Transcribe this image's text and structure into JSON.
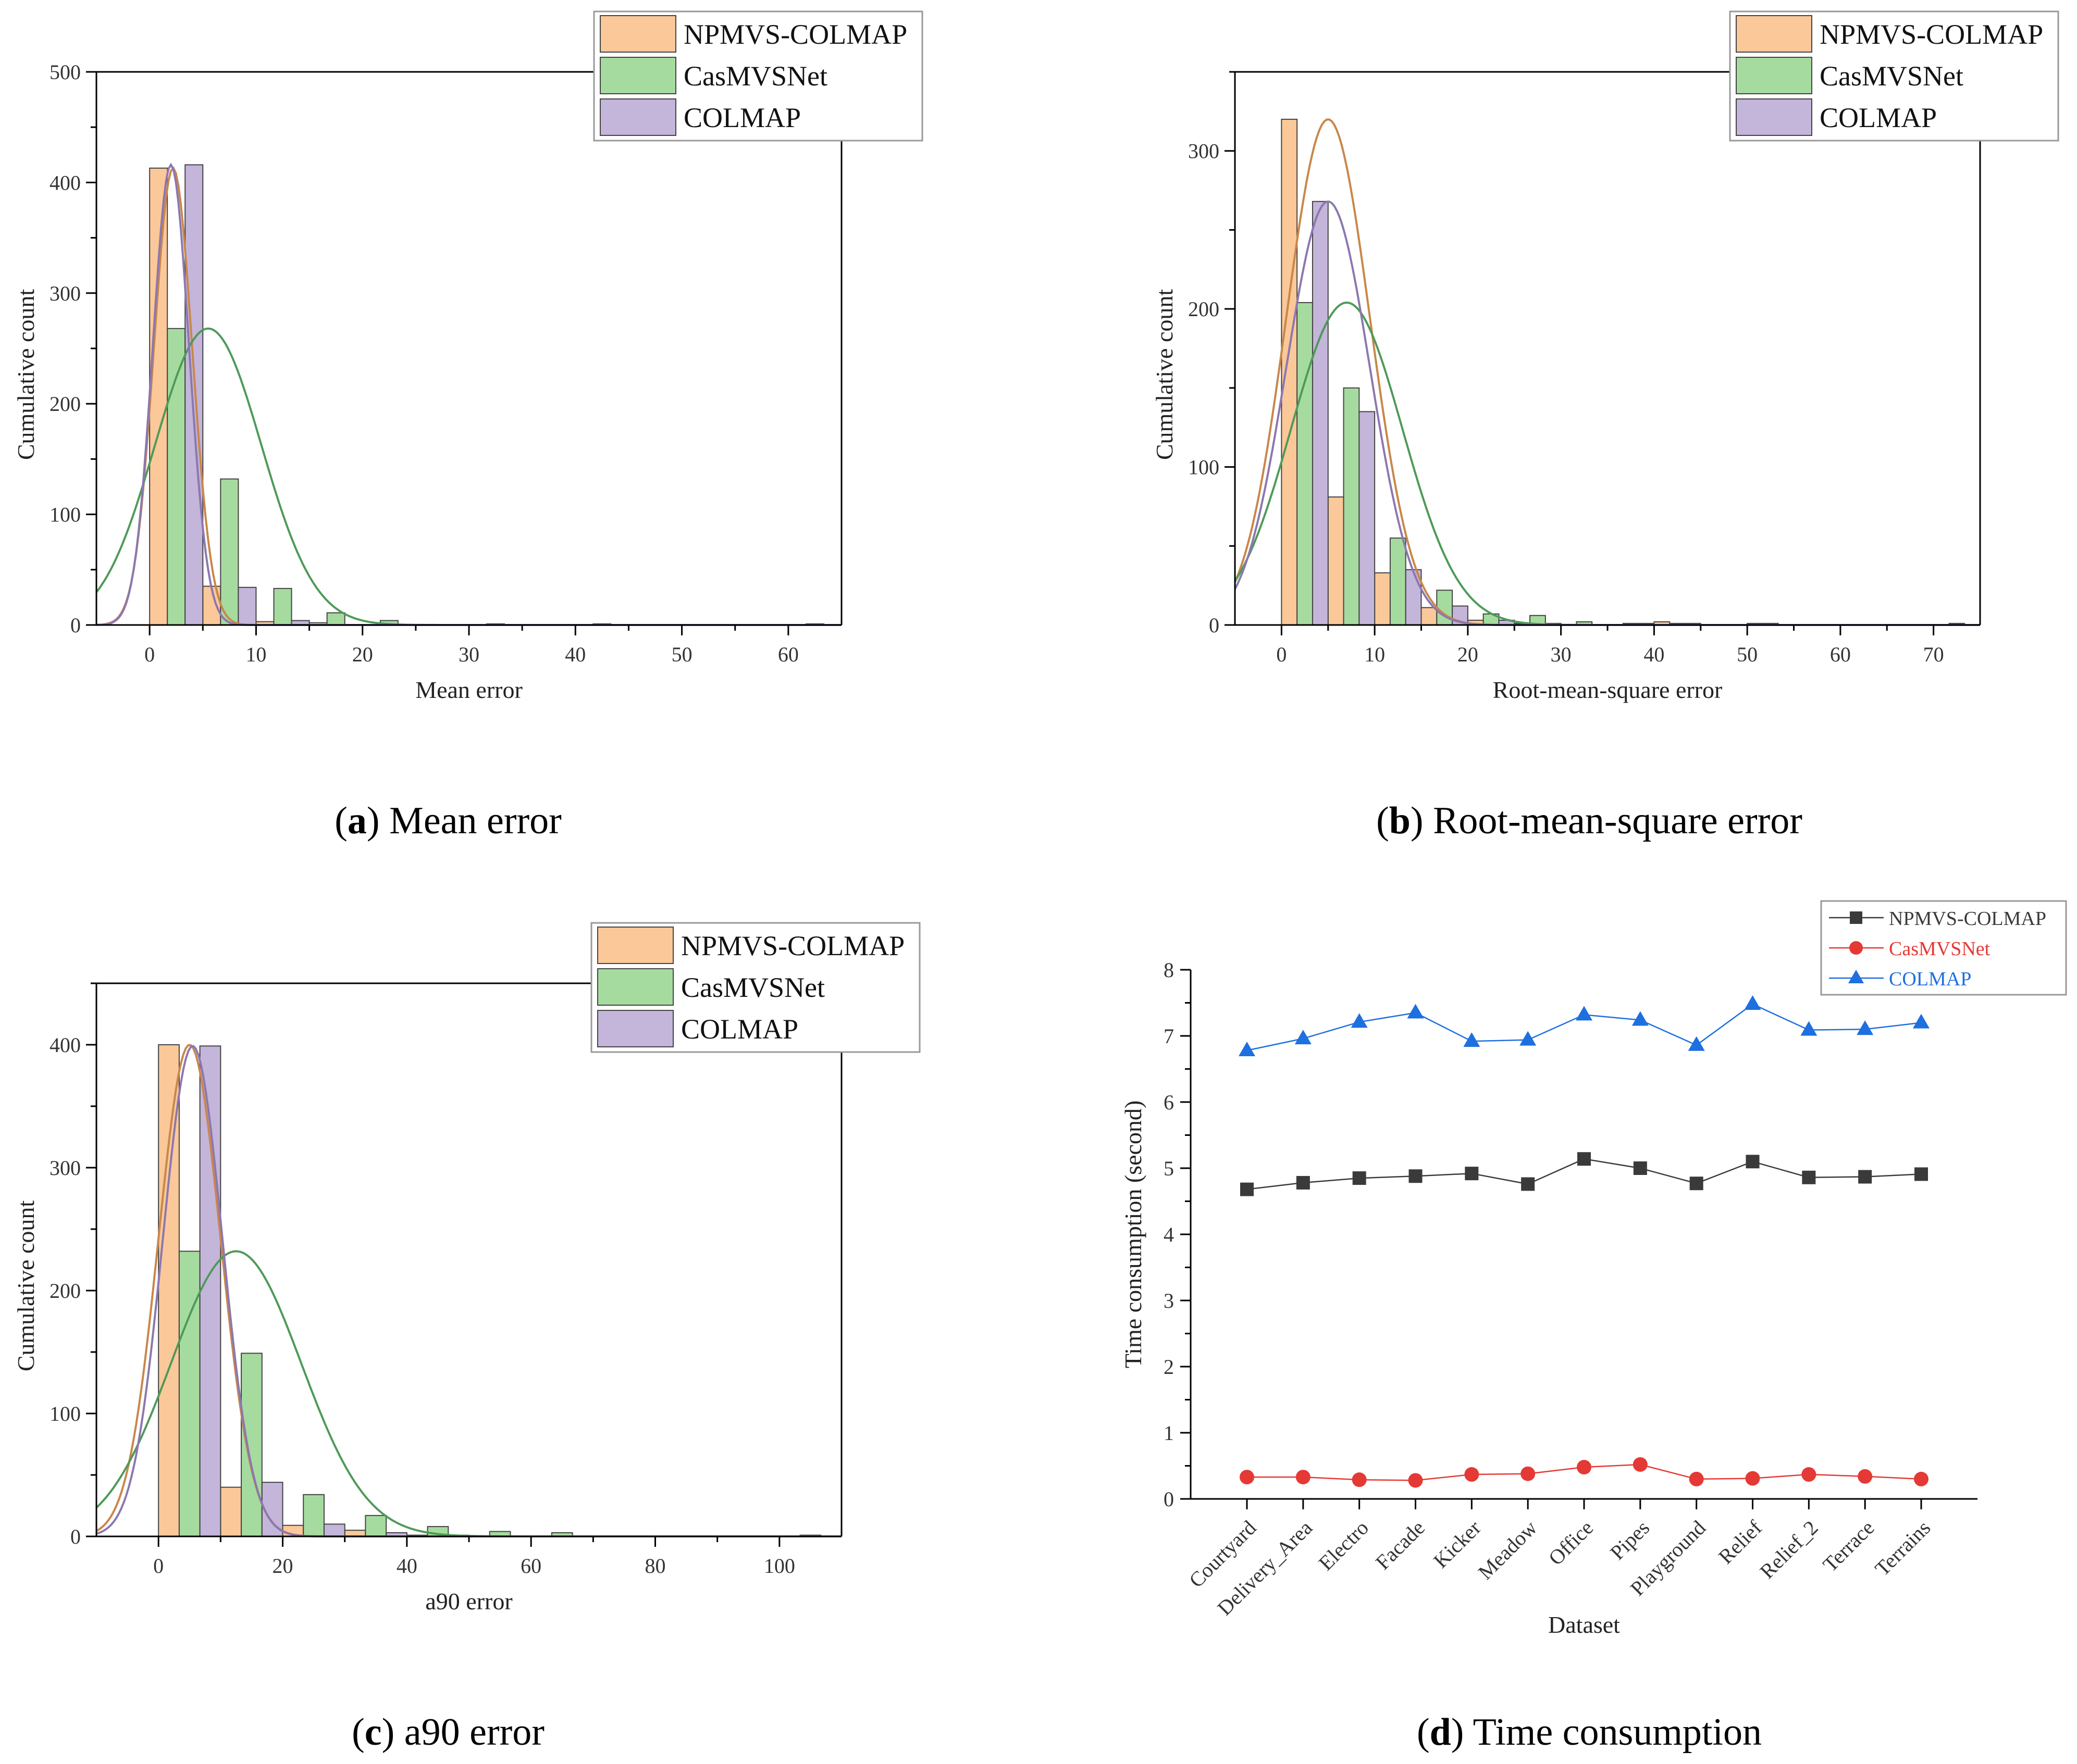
{
  "colors": {
    "npmvs_fill": "#FBC899",
    "npmvs_curve": "#C8874A",
    "casmvs_fill": "#A6DBA0",
    "casmvs_curve": "#4E9A58",
    "colmap_fill": "#C4B5DA",
    "colmap_curve": "#8C77B0",
    "bar_stroke": "#444444",
    "axis": "#000000",
    "line_npmvs": "#3a3a3a",
    "line_casmvs": "#E53935",
    "line_colmap": "#1E6FE0"
  },
  "chart_data": [
    {
      "id": "a",
      "type": "bar",
      "caption_letter": "a",
      "caption_text": "Mean error",
      "xlabel": "Mean error",
      "ylabel": "Cumulative count",
      "xlim": [
        -5,
        65
      ],
      "ylim": [
        0,
        500
      ],
      "xticks": [
        0,
        10,
        20,
        30,
        40,
        50,
        60
      ],
      "yticks": [
        0,
        100,
        200,
        300,
        400,
        500
      ],
      "bin_width": 5,
      "legend": [
        "NPMVS-COLMAP",
        "CasMVSNet",
        "COLMAP"
      ],
      "series": [
        {
          "name": "NPMVS-COLMAP",
          "bins": [
            0,
            5,
            10,
            15,
            20,
            30,
            40,
            50,
            60
          ],
          "values": [
            413,
            35,
            3,
            2,
            0,
            0,
            0,
            0,
            0
          ],
          "curve": {
            "amplitude": 413,
            "mean": 2.2,
            "sd": 1.8
          }
        },
        {
          "name": "CasMVSNet",
          "bins": [
            0,
            5,
            10,
            15,
            20,
            30,
            40,
            50,
            60
          ],
          "values": [
            268,
            132,
            33,
            11,
            4,
            1,
            1,
            0,
            1
          ],
          "curve": {
            "amplitude": 268,
            "mean": 5.5,
            "sd": 5.0
          }
        },
        {
          "name": "COLMAP",
          "bins": [
            0,
            5,
            10,
            15,
            20,
            30,
            40,
            50,
            60
          ],
          "values": [
            416,
            34,
            4,
            0,
            0,
            0,
            0,
            0,
            0
          ],
          "curve": {
            "amplitude": 416,
            "mean": 2.0,
            "sd": 1.7
          }
        }
      ]
    },
    {
      "id": "b",
      "type": "bar",
      "caption_letter": "b",
      "caption_text": "Root-mean-square error",
      "xlabel": "Root-mean-square error",
      "ylabel": "Cumulative count",
      "xlim": [
        -5,
        75
      ],
      "ylim": [
        0,
        350
      ],
      "xticks": [
        0,
        10,
        20,
        30,
        40,
        50,
        60,
        70
      ],
      "yticks": [
        0,
        100,
        200,
        300
      ],
      "bin_width": 5,
      "legend": [
        "NPMVS-COLMAP",
        "CasMVSNet",
        "COLMAP"
      ],
      "series": [
        {
          "name": "NPMVS-COLMAP",
          "bins": [
            0,
            5,
            10,
            15,
            20,
            25,
            30,
            35,
            40,
            45,
            50,
            55,
            60,
            65,
            70
          ],
          "values": [
            320,
            81,
            33,
            11,
            3,
            1,
            0,
            0,
            2,
            0,
            1,
            0,
            0,
            0,
            0
          ],
          "curve": {
            "amplitude": 320,
            "mean": 5.0,
            "sd": 4.5
          }
        },
        {
          "name": "CasMVSNet",
          "bins": [
            0,
            5,
            10,
            15,
            20,
            25,
            30,
            35,
            40,
            45,
            50,
            55,
            60,
            65,
            70
          ],
          "values": [
            204,
            150,
            55,
            22,
            7,
            6,
            2,
            1,
            1,
            0,
            1,
            0,
            0,
            0,
            1
          ],
          "curve": {
            "amplitude": 204,
            "mean": 7.0,
            "sd": 6.0
          }
        },
        {
          "name": "COLMAP",
          "bins": [
            0,
            5,
            10,
            15,
            20,
            25,
            30,
            35,
            40,
            45,
            50,
            55,
            60,
            65,
            70
          ],
          "values": [
            268,
            135,
            35,
            12,
            3,
            1,
            0,
            1,
            1,
            0,
            0,
            0,
            0,
            0,
            0
          ],
          "curve": {
            "amplitude": 268,
            "mean": 5.0,
            "sd": 4.5
          }
        }
      ]
    },
    {
      "id": "c",
      "type": "bar",
      "caption_letter": "c",
      "caption_text": "a90 error",
      "xlabel": "a90 error",
      "ylabel": "Cumulative count",
      "xlim": [
        -10,
        110
      ],
      "ylim": [
        0,
        450
      ],
      "xticks": [
        0,
        20,
        40,
        60,
        80,
        100
      ],
      "yticks": [
        0,
        100,
        200,
        300,
        400
      ],
      "bin_width": 10,
      "legend": [
        "NPMVS-COLMAP",
        "CasMVSNet",
        "COLMAP"
      ],
      "series": [
        {
          "name": "NPMVS-COLMAP",
          "bins": [
            0,
            10,
            20,
            30,
            40,
            50,
            60,
            100
          ],
          "values": [
            400,
            40,
            9,
            5,
            1,
            0,
            0,
            0
          ],
          "curve": {
            "amplitude": 400,
            "mean": 5.0,
            "sd": 5.0
          }
        },
        {
          "name": "CasMVSNet",
          "bins": [
            0,
            10,
            20,
            30,
            40,
            50,
            60,
            100
          ],
          "values": [
            232,
            149,
            34,
            17,
            8,
            4,
            3,
            1
          ],
          "curve": {
            "amplitude": 232,
            "mean": 12.5,
            "sd": 10.5
          }
        },
        {
          "name": "COLMAP",
          "bins": [
            0,
            10,
            20,
            30,
            40,
            50,
            60,
            100
          ],
          "values": [
            399,
            44,
            10,
            3,
            1,
            0,
            0,
            0
          ],
          "curve": {
            "amplitude": 399,
            "mean": 5.5,
            "sd": 4.8
          }
        }
      ]
    },
    {
      "id": "d",
      "type": "line",
      "caption_letter": "d",
      "caption_text": "Time consumption",
      "xlabel": "Dataset",
      "ylabel": "Time consumption (second)",
      "ylim": [
        0,
        8
      ],
      "yticks": [
        0,
        1,
        2,
        3,
        4,
        5,
        6,
        7,
        8
      ],
      "categories": [
        "Courtyard",
        "Delivery_Area",
        "Electro",
        "Facade",
        "Kicker",
        "Meadow",
        "Office",
        "Pipes",
        "Playground",
        "Relief",
        "Relief_2",
        "Terrace",
        "Terrains"
      ],
      "legend": [
        "NPMVS-COLMAP",
        "CasMVSNet",
        "COLMAP"
      ],
      "series": [
        {
          "name": "NPMVS-COLMAP",
          "marker": "square",
          "values": [
            4.68,
            4.78,
            4.85,
            4.88,
            4.92,
            4.76,
            5.14,
            5.0,
            4.77,
            5.1,
            4.86,
            4.87,
            4.91
          ]
        },
        {
          "name": "CasMVSNet",
          "marker": "circle",
          "values": [
            0.33,
            0.33,
            0.29,
            0.28,
            0.37,
            0.38,
            0.48,
            0.52,
            0.3,
            0.31,
            0.37,
            0.34,
            0.3
          ]
        },
        {
          "name": "COLMAP",
          "marker": "triangle",
          "values": [
            6.78,
            6.96,
            7.21,
            7.35,
            6.92,
            6.94,
            7.32,
            7.24,
            6.86,
            7.48,
            7.09,
            7.1,
            7.2
          ]
        }
      ]
    }
  ]
}
